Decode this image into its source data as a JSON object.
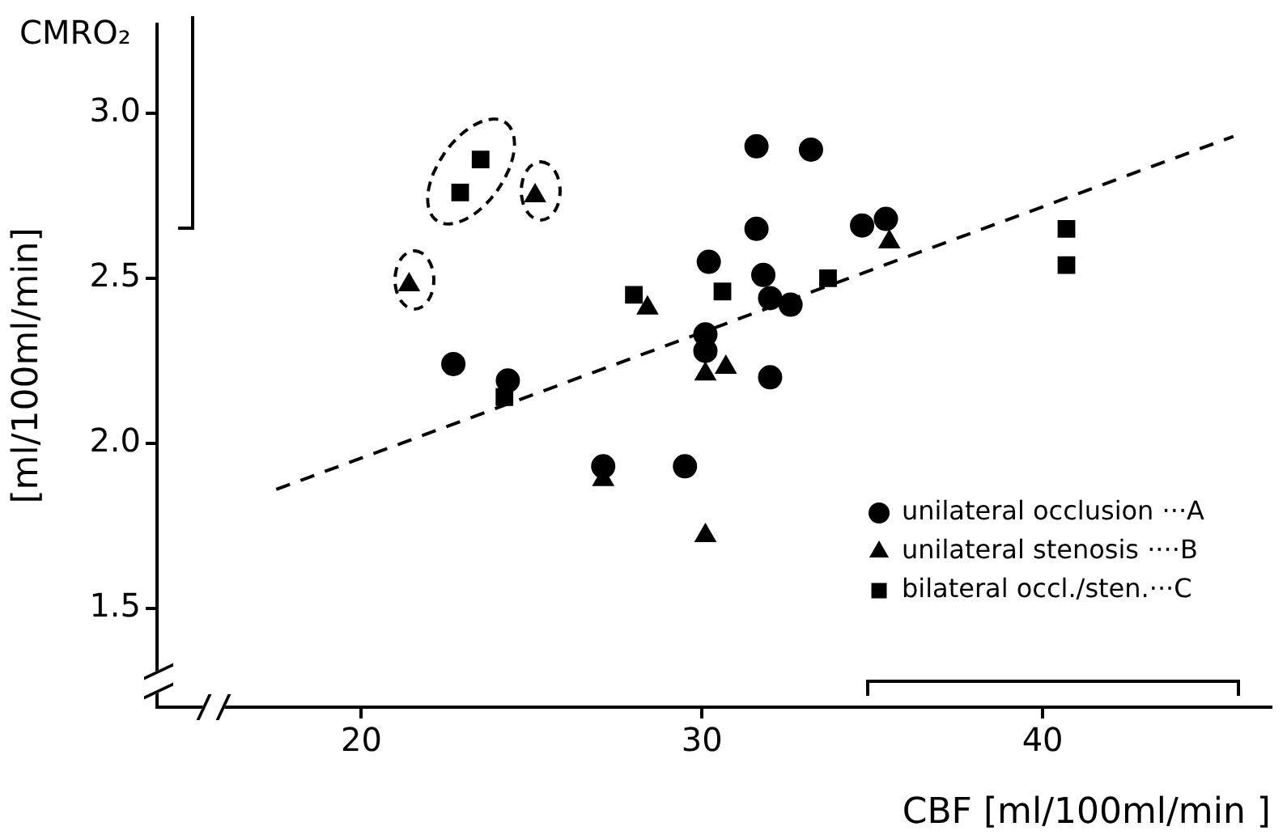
{
  "chart_data": {
    "type": "scatter",
    "xlabel": "CBF [ml/100ml/min ]",
    "ylabel": "[ml/100ml/min]",
    "annotations": [
      "CMRO₂"
    ],
    "xlim": [
      14,
      46.7
    ],
    "ylim": [
      1.2,
      3.27
    ],
    "xticks": [
      20,
      30,
      40
    ],
    "yticks": [
      {
        "value": 1.5,
        "label": "1.5"
      },
      {
        "value": 2,
        "label": "2.0"
      },
      {
        "value": 2.5,
        "label": "2.5"
      },
      {
        "value": 3,
        "label": "3.0"
      }
    ],
    "grid": false,
    "legend": "bottom right",
    "series": [
      {
        "name": "unilateral occlusion ···A",
        "color": "#000000",
        "marker": "circle",
        "x": [
          22.7,
          24.3,
          27.1,
          29.5,
          31.6,
          33.2,
          31.6,
          34.7,
          35.4,
          30.2,
          31.8,
          32.0,
          32.6,
          30.1,
          30.1,
          32.0
        ],
        "values": [
          2.24,
          2.19,
          1.93,
          1.93,
          2.9,
          2.89,
          2.65,
          2.66,
          2.68,
          2.55,
          2.51,
          2.44,
          2.42,
          2.33,
          2.28,
          2.2
        ]
      },
      {
        "name": "unilateral stenosis ····B",
        "color": "#000000",
        "marker": "triangle",
        "x": [
          21.4,
          25.1,
          28.4,
          30.1,
          30.7,
          35.5,
          30.1,
          27.1
        ],
        "values": [
          2.48,
          2.75,
          2.41,
          2.21,
          2.23,
          2.61,
          1.72,
          1.89
        ]
      },
      {
        "name": "bilateral occl./sten.···C",
        "color": "#000000",
        "marker": "square",
        "x": [
          23.5,
          22.9,
          24.2,
          28.0,
          30.6,
          33.7,
          40.7,
          40.7
        ],
        "values": [
          2.86,
          2.76,
          2.14,
          2.45,
          2.46,
          2.5,
          2.65,
          2.54
        ]
      },
      {
        "type": "line",
        "color": "#000000",
        "marker": "none",
        "line_style": "dashed",
        "x": [
          17.5,
          45.6
        ],
        "values": [
          1.86,
          2.93
        ]
      }
    ]
  }
}
